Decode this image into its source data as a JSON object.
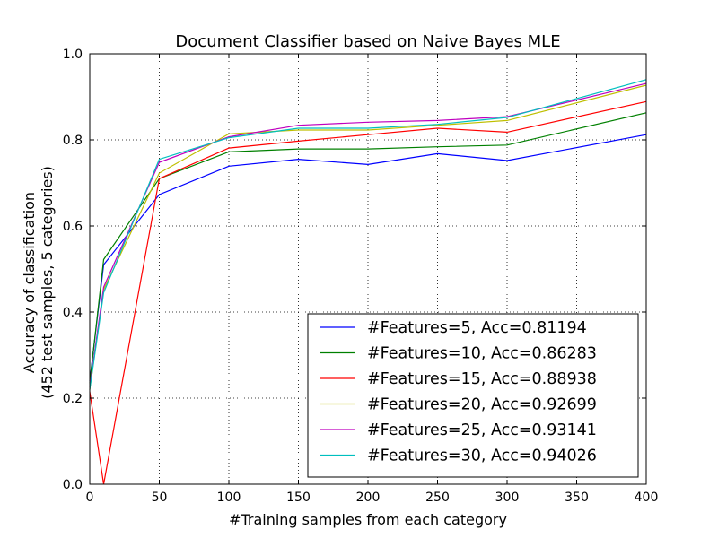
{
  "chart_data": {
    "type": "line",
    "title": "Document Classifier based on Naive Bayes MLE",
    "xlabel": "#Training samples from each category",
    "ylabel": [
      "Accuracy of classification",
      "(452 test samples, 5 categories)"
    ],
    "xlim": [
      0,
      400
    ],
    "ylim": [
      0.0,
      1.0
    ],
    "xticks": [
      0,
      50,
      100,
      150,
      200,
      250,
      300,
      350,
      400
    ],
    "yticks": [
      0.0,
      0.2,
      0.4,
      0.6,
      0.8,
      1.0
    ],
    "xtick_labels": [
      "0",
      "50",
      "100",
      "150",
      "200",
      "250",
      "300",
      "350",
      "400"
    ],
    "ytick_labels": [
      "0.0",
      "0.2",
      "0.4",
      "0.6",
      "0.8",
      "1.0"
    ],
    "grid": true,
    "legend_position": "lower-right",
    "x": [
      0,
      10,
      50,
      100,
      150,
      200,
      250,
      300,
      400
    ],
    "series": [
      {
        "name": "#Features=5, Acc=0.81194",
        "color": "#0000ff",
        "values": [
          0.24,
          0.51,
          0.673,
          0.739,
          0.755,
          0.743,
          0.768,
          0.752,
          0.812
        ]
      },
      {
        "name": "#Features=10, Acc=0.86283",
        "color": "#008000",
        "values": [
          0.235,
          0.522,
          0.71,
          0.772,
          0.779,
          0.779,
          0.784,
          0.788,
          0.863
        ]
      },
      {
        "name": "#Features=15, Acc=0.88938",
        "color": "#ff0000",
        "values": [
          0.215,
          0.0,
          0.71,
          0.781,
          0.797,
          0.812,
          0.827,
          0.818,
          0.889
        ]
      },
      {
        "name": "#Features=20, Acc=0.92699",
        "color": "#bfbf00",
        "values": [
          0.22,
          0.452,
          0.723,
          0.814,
          0.823,
          0.823,
          0.834,
          0.845,
          0.927
        ]
      },
      {
        "name": "#Features=25, Acc=0.93141",
        "color": "#bf00bf",
        "values": [
          0.225,
          0.458,
          0.748,
          0.807,
          0.834,
          0.841,
          0.845,
          0.854,
          0.931
        ]
      },
      {
        "name": "#Features=30, Acc=0.94026",
        "color": "#00bfbf",
        "values": [
          0.22,
          0.445,
          0.755,
          0.805,
          0.827,
          0.827,
          0.836,
          0.852,
          0.94
        ]
      }
    ]
  }
}
